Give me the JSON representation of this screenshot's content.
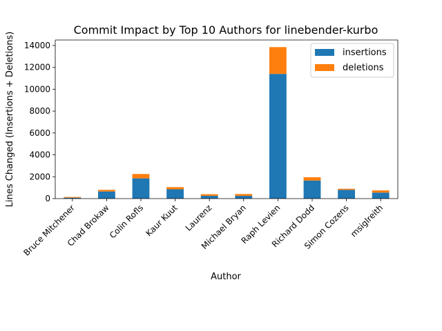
{
  "chart_data": {
    "type": "bar",
    "stacked": true,
    "title": "Commit Impact by Top 10 Authors for linebender-kurbo",
    "xlabel": "Author",
    "ylabel": "Lines Changed (Insertions + Deletions)",
    "categories": [
      "Bruce Mitchener",
      "Chad Brokaw",
      "Colin Rofls",
      "Kaur Kuut",
      "Laurenz",
      "Michael Bryan",
      "Raph Levien",
      "Richard Dodd",
      "Simon Cozens",
      "msiglreith"
    ],
    "series": [
      {
        "name": "insertions",
        "color": "#1f77b4",
        "values": [
          80,
          650,
          1850,
          850,
          250,
          250,
          11400,
          1650,
          800,
          550
        ]
      },
      {
        "name": "deletions",
        "color": "#ff7f0e",
        "values": [
          70,
          150,
          400,
          200,
          150,
          170,
          2450,
          300,
          100,
          200
        ]
      }
    ],
    "ylim": [
      0,
      14500
    ],
    "yticks": [
      0,
      2000,
      4000,
      6000,
      8000,
      10000,
      12000,
      14000
    ],
    "ytick_labels": [
      "0",
      "2000",
      "4000",
      "6000",
      "8000",
      "10000",
      "12000",
      "14000"
    ],
    "grid": false,
    "legend_position": "top-right"
  }
}
